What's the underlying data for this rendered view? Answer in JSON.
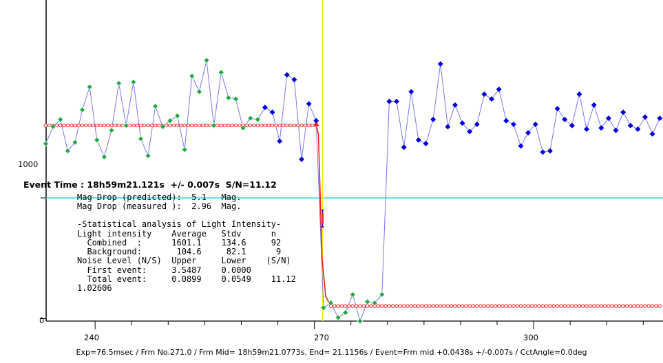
{
  "chart_data": {
    "type": "line",
    "ylim": [
      -20,
      2640
    ],
    "xlim": [
      233.3,
      317.7
    ],
    "x_ticks": [
      240,
      270,
      300
    ],
    "y_ticks": [
      0,
      1000
    ],
    "event_line_x": 271.12,
    "reference_line_y": 1000,
    "colors": {
      "green_points": "#22aa44",
      "blue_points": "#0000dd",
      "connecting_line": "#7777ee",
      "fit_line": "#ee2222",
      "event_line": "#ffee00",
      "reference_line": "#22dddd",
      "error_bar": "#0000aa"
    },
    "series": [
      {
        "marker": "green-diamond",
        "x": [
          233.25,
          234.25,
          235.25,
          236.25,
          237.25,
          238.25,
          239.25,
          240.25,
          241.25,
          242.25,
          243.25,
          244.25,
          245.25,
          246.25,
          247.25,
          248.25,
          249.25,
          250.25,
          251.25,
          252.25,
          253.25,
          254.25,
          255.25,
          256.25,
          257.25,
          258.25,
          259.25,
          260.25,
          261.25,
          262.25
        ],
        "y": [
          1450,
          1590,
          1650,
          1390,
          1460,
          1730,
          1920,
          1480,
          1340,
          1560,
          1950,
          1600,
          1960,
          1490,
          1350,
          1760,
          1590,
          1640,
          1680,
          1400,
          2010,
          1880,
          2140,
          1600,
          2040,
          1830,
          1820,
          1580,
          1660,
          1650
        ]
      },
      {
        "marker": "blue-diamond",
        "x": [
          263.25,
          264.25,
          265.25,
          266.25,
          267.25,
          268.25,
          269.25,
          270.25
        ],
        "y": [
          1750,
          1710,
          1470,
          2020,
          1980,
          1320,
          1780,
          1640
        ]
      },
      {
        "marker": "green-diamond",
        "x": [
          271.25,
          272.25,
          273.25,
          274.25,
          275.25,
          276.25,
          277.25,
          278.25,
          279.25
        ],
        "y": [
          90,
          130,
          10,
          50,
          200,
          -20,
          140,
          130,
          200
        ]
      },
      {
        "marker": "blue-diamond",
        "x": [
          280.25,
          281.25,
          282.25,
          283.25,
          284.25,
          285.25,
          286.25,
          287.25,
          288.25,
          289.25,
          290.25,
          291.25,
          292.25,
          293.25,
          294.25,
          295.25,
          296.25,
          297.25,
          298.25,
          299.25,
          300.25,
          301.25,
          302.25,
          303.25,
          304.25,
          305.25,
          306.25,
          307.25,
          308.25,
          309.25,
          310.25,
          311.25,
          312.25,
          313.25,
          314.25,
          315.25,
          316.25,
          317.25
        ],
        "y": [
          1800,
          1800,
          1420,
          1880,
          1480,
          1450,
          1650,
          2110,
          1590,
          1770,
          1620,
          1550,
          1610,
          1860,
          1820,
          1900,
          1640,
          1610,
          1430,
          1540,
          1610,
          1380,
          1390,
          1740,
          1650,
          1600,
          1860,
          1570,
          1770,
          1580,
          1660,
          1560,
          1710,
          1600,
          1570,
          1670,
          1530,
          1660
        ]
      }
    ],
    "fit": {
      "levels": [
        1601.1,
        104.6
      ],
      "step_left_x": 270.25,
      "step_right_x": 271.55,
      "bg_start_x": 272.25,
      "marker_x_start": 233.25,
      "marker_x_end": 317.25,
      "marker_step": 0.5
    },
    "event_time": "Event Time : 18h59m21.121s  +/- 0.007s  S/N=11.12",
    "error_bar": {
      "x_center": 271.12,
      "half_width": 0.25,
      "y_top": 900,
      "y_bottom": 760
    }
  },
  "labels": {
    "y_ticks": [
      "0",
      "1000"
    ],
    "x_ticks": [
      "240",
      "270",
      "300"
    ]
  },
  "info": {
    "event_time": "Event Time : 18h59m21.121s  +/- 0.007s  S/N=11.12",
    "mag_pred": "Mag Drop (predicted):  5.1   Mag.",
    "mag_meas": "Mag Drop (measured ):  2.96  Mag.",
    "stat_title": "-Statistical analysis of Light Intensity-",
    "row_header": "Light intensity    Average   Stdv      n",
    "row_combined": "  Combined  :      1601.1    134.6     92",
    "row_background": "  Background:       104.6     82.1      9",
    "row_noise": "Noise Level (N/S)  Upper     Lower    (S/N)",
    "row_first": "  First event:     3.5487    0.0000",
    "row_total": "  Total event:     0.0899    0.0549    11.12",
    "row_extra": "1.02606"
  },
  "footer": "Exp=76.5msec / Frm No.271.0 / Frm Mid= 18h59m21.0773s,  End= 21.1156s / Event=Frm mid +0.0438s +/-0.007s / CctAngle=0.0deg"
}
